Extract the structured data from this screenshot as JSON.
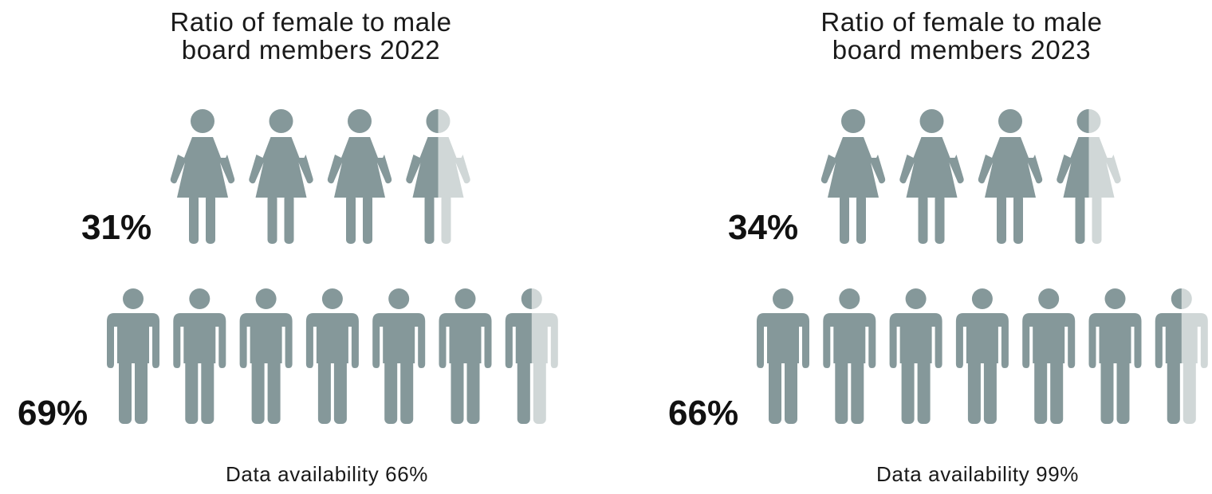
{
  "colors": {
    "filled": "#85989a",
    "empty": "#d0d7d7"
  },
  "chart_data": [
    {
      "type": "pictogram",
      "title": "Ratio of female to male board members 2022",
      "title_lines": [
        "Ratio of female to male",
        "board members 2022"
      ],
      "series": [
        {
          "name": "female",
          "value": 31,
          "value_label": "31%",
          "icons_total": 4,
          "icons_filled": 3.5
        },
        {
          "name": "male",
          "value": 69,
          "value_label": "69%",
          "icons_total": 7,
          "icons_filled": 6.5
        }
      ],
      "footer": "Data availability 66%"
    },
    {
      "type": "pictogram",
      "title": "Ratio of female to male board members 2023",
      "title_lines": [
        "Ratio of female to male",
        "board members 2023"
      ],
      "series": [
        {
          "name": "female",
          "value": 34,
          "value_label": "34%",
          "icons_total": 4,
          "icons_filled": 3.5
        },
        {
          "name": "male",
          "value": 66,
          "value_label": "66%",
          "icons_total": 7,
          "icons_filled": 6.5
        }
      ],
      "footer": "Data availability 99%"
    }
  ]
}
